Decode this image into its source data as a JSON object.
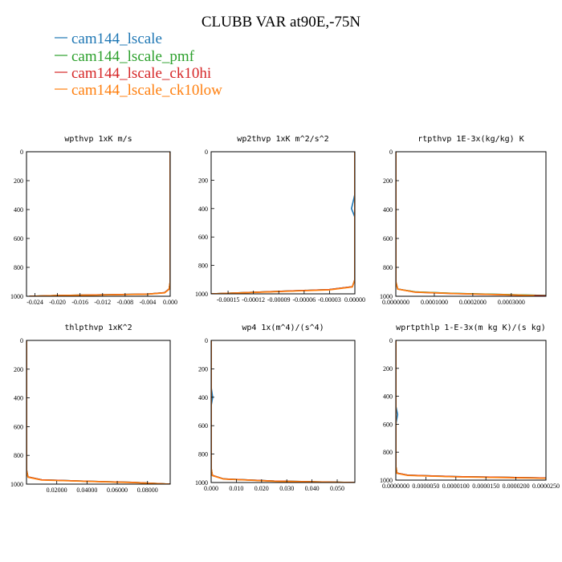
{
  "figure": {
    "title": "CLUBB VAR at90E,-75N",
    "legend": [
      {
        "label": "cam144_lscale",
        "color": "#1f77b4"
      },
      {
        "label": "cam144_lscale_pmf",
        "color": "#2ca02c"
      },
      {
        "label": "cam144_lscale_ck10hi",
        "color": "#d62728"
      },
      {
        "label": "cam144_lscale_ck10low",
        "color": "#ff7f0e"
      }
    ]
  },
  "chart_data": [
    {
      "type": "line",
      "title": "wpthvp  1xK m/s",
      "xlim": [
        -0.0255,
        0.0
      ],
      "ylim": [
        1000,
        0
      ],
      "xticks": [
        -0.024,
        -0.02,
        -0.016,
        -0.012,
        -0.008,
        -0.004,
        0.0
      ],
      "xtick_labels": [
        "-0.024",
        "-0.020",
        "-0.016",
        "-0.012",
        "-0.008",
        "-0.004",
        "0.000"
      ],
      "yticks": [
        0,
        200,
        400,
        600,
        800,
        1000
      ],
      "series": [
        {
          "color": "#1f77b4",
          "x": [
            0.0,
            0.0,
            0.0,
            -0.0002,
            -0.001,
            -0.004,
            -0.012,
            -0.02,
            -0.025
          ],
          "y": [
            0,
            400,
            900,
            950,
            975,
            985,
            990,
            995,
            1000
          ]
        },
        {
          "color": "#2ca02c",
          "x": [
            0.0,
            0.0,
            0.0,
            -0.0002,
            -0.001,
            -0.004,
            -0.012,
            -0.02,
            -0.025
          ],
          "y": [
            0,
            400,
            900,
            950,
            975,
            985,
            990,
            995,
            1000
          ]
        },
        {
          "color": "#d62728",
          "x": [
            0.0,
            0.0,
            0.0,
            -0.0002,
            -0.001,
            -0.004,
            -0.012,
            -0.02,
            -0.025
          ],
          "y": [
            0,
            400,
            900,
            950,
            975,
            985,
            990,
            995,
            1000
          ]
        },
        {
          "color": "#ff7f0e",
          "x": [
            0.0,
            0.0,
            0.0,
            -0.0002,
            -0.001,
            -0.004,
            -0.012,
            -0.02,
            -0.025
          ],
          "y": [
            0,
            400,
            900,
            952,
            977,
            986,
            991,
            995,
            1000
          ]
        }
      ]
    },
    {
      "type": "line",
      "title": "wp2thvp  1xK m^2/s^2",
      "xlim": [
        -0.00017,
        0.0
      ],
      "ylim": [
        1000,
        0
      ],
      "xticks": [
        -0.00015,
        -0.00012,
        -9e-05,
        -6e-05,
        -3e-05,
        0.0
      ],
      "xtick_labels": [
        "-0.00015",
        "-0.00012",
        "-0.00009",
        "-0.00006",
        "-0.00003",
        "0.00000"
      ],
      "yticks": [
        0,
        200,
        400,
        600,
        800,
        1000
      ],
      "series": [
        {
          "color": "#1f77b4",
          "x": [
            0.0,
            0.0,
            -4e-06,
            0.0,
            0.0,
            -3e-06,
            -3e-05,
            -0.0001,
            -0.00017
          ],
          "y": [
            0,
            300,
            400,
            460,
            900,
            950,
            970,
            985,
            1000
          ]
        },
        {
          "color": "#2ca02c",
          "x": [
            0.0,
            0.0,
            0.0,
            -3e-06,
            -3e-05,
            -0.0001,
            -0.00017
          ],
          "y": [
            0,
            400,
            900,
            950,
            970,
            985,
            1000
          ]
        },
        {
          "color": "#d62728",
          "x": [
            0.0,
            0.0,
            0.0,
            -3e-06,
            -3e-05,
            -0.0001,
            -0.00017
          ],
          "y": [
            0,
            400,
            900,
            950,
            970,
            985,
            1000
          ]
        },
        {
          "color": "#ff7f0e",
          "x": [
            0.0,
            0.0,
            0.0,
            -3e-06,
            -3e-05,
            -0.0001,
            -0.00017
          ],
          "y": [
            0,
            400,
            900,
            952,
            972,
            986,
            1000
          ]
        }
      ]
    },
    {
      "type": "line",
      "title": "rtpthvp  1E-3x(kg/kg) K",
      "xlim": [
        0.0,
        0.00039
      ],
      "ylim": [
        1000,
        0
      ],
      "xticks": [
        0.0,
        0.0001,
        0.0002,
        0.0003
      ],
      "xtick_labels": [
        "0.0000000",
        "0.0001000",
        "0.0002000",
        "0.0003000"
      ],
      "yticks": [
        0,
        200,
        400,
        600,
        800,
        1000
      ],
      "series": [
        {
          "color": "#1f77b4",
          "x": [
            0.0,
            0.0,
            0.0,
            5e-06,
            5e-05,
            0.00015,
            0.00028,
            0.00039
          ],
          "y": [
            0,
            400,
            900,
            950,
            970,
            980,
            988,
            995
          ]
        },
        {
          "color": "#2ca02c",
          "x": [
            0.0,
            0.0,
            0.0,
            5e-06,
            5e-05,
            0.00015,
            0.00028,
            0.00039
          ],
          "y": [
            0,
            400,
            900,
            950,
            970,
            980,
            988,
            995
          ]
        },
        {
          "color": "#d62728",
          "x": [
            0.0,
            0.0,
            0.0,
            5e-06,
            5e-05,
            0.00015,
            0.00028,
            0.00039
          ],
          "y": [
            0,
            400,
            900,
            950,
            972,
            982,
            990,
            997
          ]
        },
        {
          "color": "#ff7f0e",
          "x": [
            0.0,
            0.0,
            0.0,
            5e-06,
            5e-05,
            0.00015,
            0.00028,
            0.00036
          ],
          "y": [
            0,
            400,
            900,
            951,
            971,
            981,
            989,
            995
          ]
        }
      ]
    },
    {
      "type": "line",
      "title": "thlpthvp  1xK^2",
      "xlim": [
        0.0,
        0.095
      ],
      "ylim": [
        1000,
        0
      ],
      "xticks": [
        0.02,
        0.04,
        0.06,
        0.08
      ],
      "xtick_labels": [
        "0.02000",
        "0.04000",
        "0.06000",
        "0.08000"
      ],
      "yticks": [
        0,
        200,
        400,
        600,
        800,
        1000
      ],
      "series": [
        {
          "color": "#1f77b4",
          "x": [
            0.0,
            0.0,
            0.0,
            0.001,
            0.01,
            0.04,
            0.07,
            0.095
          ],
          "y": [
            0,
            400,
            900,
            950,
            970,
            980,
            988,
            1000
          ]
        },
        {
          "color": "#2ca02c",
          "x": [
            0.0,
            0.0,
            0.0,
            0.001,
            0.01,
            0.04,
            0.07,
            0.095
          ],
          "y": [
            0,
            400,
            900,
            950,
            970,
            980,
            988,
            1000
          ]
        },
        {
          "color": "#d62728",
          "x": [
            0.0,
            0.0,
            0.0,
            0.001,
            0.01,
            0.04,
            0.07,
            0.095
          ],
          "y": [
            0,
            400,
            900,
            950,
            970,
            980,
            988,
            1000
          ]
        },
        {
          "color": "#ff7f0e",
          "x": [
            0.0,
            0.0,
            0.0,
            0.001,
            0.01,
            0.04,
            0.07,
            0.095
          ],
          "y": [
            0,
            400,
            900,
            952,
            972,
            981,
            989,
            1000
          ]
        }
      ]
    },
    {
      "type": "line",
      "title": "wp4  1x(m^4)/(s^4)",
      "xlim": [
        0.0,
        0.057
      ],
      "ylim": [
        1000,
        0
      ],
      "xticks": [
        0.0,
        0.01,
        0.02,
        0.03,
        0.04,
        0.05
      ],
      "xtick_labels": [
        "0.000",
        "0.010",
        "0.020",
        "0.030",
        "0.040",
        "0.050"
      ],
      "yticks": [
        0,
        200,
        400,
        600,
        800,
        1000
      ],
      "series": [
        {
          "color": "#1f77b4",
          "x": [
            0.0,
            0.0,
            0.0006,
            0.0,
            0.0,
            0.0005,
            0.005,
            0.025,
            0.057
          ],
          "y": [
            0,
            330,
            400,
            460,
            900,
            950,
            975,
            990,
            1000
          ]
        },
        {
          "color": "#2ca02c",
          "x": [
            0.0,
            0.0,
            0.0,
            0.0005,
            0.005,
            0.025,
            0.057
          ],
          "y": [
            0,
            400,
            900,
            950,
            975,
            990,
            1000
          ]
        },
        {
          "color": "#d62728",
          "x": [
            0.0,
            0.0,
            0.0,
            0.0005,
            0.005,
            0.025,
            0.057
          ],
          "y": [
            0,
            400,
            900,
            950,
            975,
            990,
            1000
          ]
        },
        {
          "color": "#ff7f0e",
          "x": [
            0.0,
            0.0,
            0.0,
            0.0005,
            0.005,
            0.025,
            0.057
          ],
          "y": [
            0,
            400,
            900,
            952,
            976,
            991,
            1000
          ]
        }
      ]
    },
    {
      "type": "line",
      "title": "wprtpthlp  1-E-3x(m kg K)/(s kg)",
      "xlim": [
        0.0,
        2.5e-05
      ],
      "ylim": [
        1000,
        0
      ],
      "xticks": [
        0.0,
        5e-06,
        1e-05,
        1.5e-05,
        2e-05,
        2.5e-05
      ],
      "xtick_labels": [
        "0.0000000",
        "0.0000050",
        "0.0000100",
        "0.0000150",
        "0.0000200",
        "0.0000250"
      ],
      "yticks": [
        0,
        200,
        400,
        600,
        800,
        1000
      ],
      "series": [
        {
          "color": "#1f77b4",
          "x": [
            0.0,
            0.0,
            3e-07,
            0.0,
            0.0,
            2e-07,
            2e-06,
            1e-05,
            2.5e-05
          ],
          "y": [
            0,
            470,
            530,
            600,
            900,
            950,
            965,
            975,
            985
          ]
        },
        {
          "color": "#2ca02c",
          "x": [
            0.0,
            0.0,
            0.0,
            2e-07,
            2e-06,
            1e-05,
            2.5e-05
          ],
          "y": [
            0,
            400,
            900,
            950,
            965,
            975,
            985
          ]
        },
        {
          "color": "#d62728",
          "x": [
            0.0,
            0.0,
            0.0,
            2e-07,
            2e-06,
            1e-05,
            2.5e-05
          ],
          "y": [
            0,
            400,
            900,
            950,
            965,
            975,
            985
          ]
        },
        {
          "color": "#ff7f0e",
          "x": [
            0.0,
            0.0,
            0.0,
            2e-07,
            2e-06,
            1e-05,
            2.5e-05
          ],
          "y": [
            0,
            400,
            900,
            952,
            967,
            977,
            987
          ]
        }
      ]
    }
  ]
}
